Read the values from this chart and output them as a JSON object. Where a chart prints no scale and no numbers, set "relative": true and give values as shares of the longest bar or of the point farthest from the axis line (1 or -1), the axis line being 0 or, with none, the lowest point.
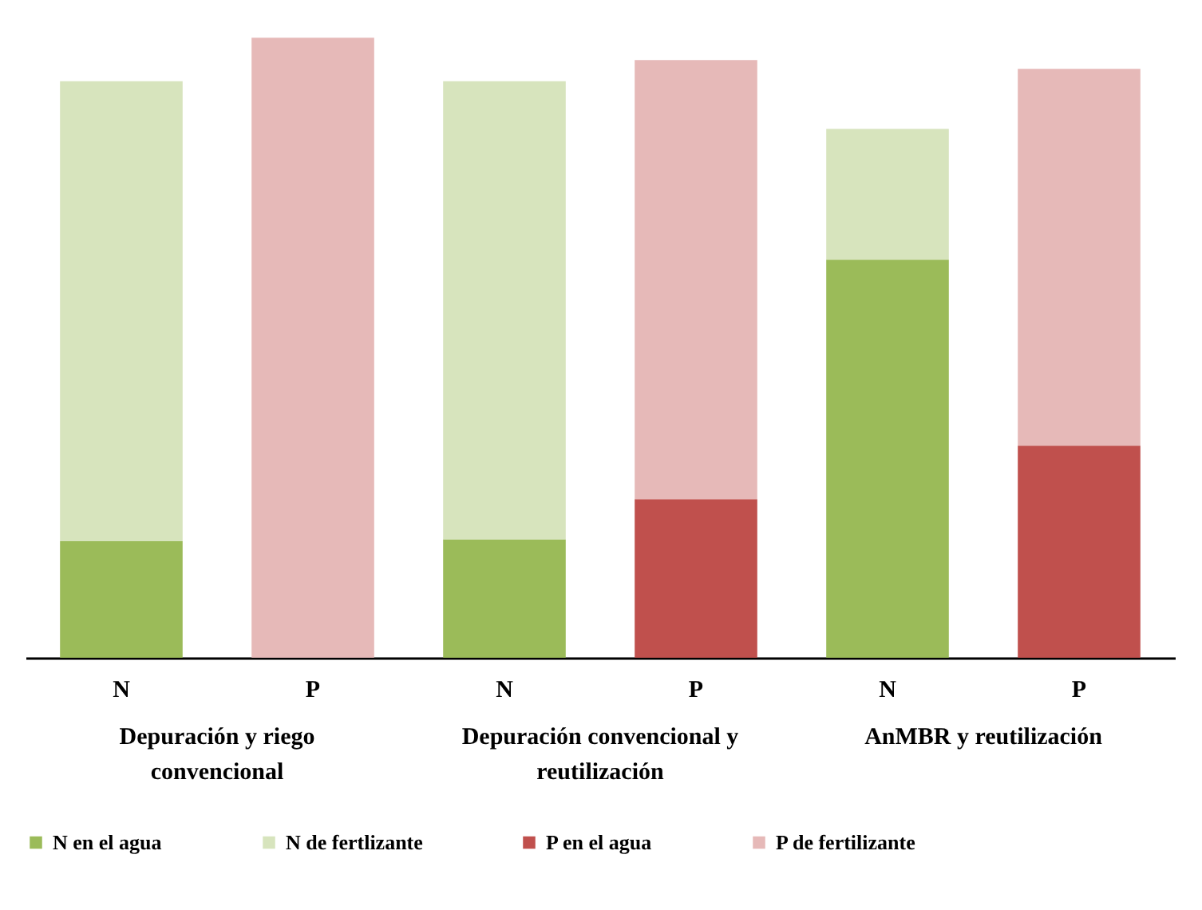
{
  "chart_data": {
    "type": "bar",
    "relative": true,
    "stacked": true,
    "legend": "bottom",
    "categories": [
      "N",
      "P",
      "N",
      "P",
      "N",
      "P"
    ],
    "annotations": [
      "Depuración y riego convencional",
      "Depuración convencional y reutilización",
      "AnMBR y reutilización"
    ],
    "series": [
      {
        "name": "N en el agua",
        "color": "#9bbb59",
        "values": [
          0.188,
          null,
          0.191,
          null,
          0.642,
          null
        ]
      },
      {
        "name": "N de fertlizante",
        "color": "#d7e4bd",
        "values": [
          0.742,
          null,
          0.739,
          null,
          0.211,
          null
        ]
      },
      {
        "name": "P en el agua",
        "color": "#c0504d",
        "values": [
          null,
          null,
          null,
          0.256,
          null,
          0.342
        ]
      },
      {
        "name": "P de fertilizante",
        "color": "#e6b9b8",
        "values": [
          null,
          1.0,
          null,
          0.708,
          null,
          0.608
        ]
      }
    ]
  }
}
